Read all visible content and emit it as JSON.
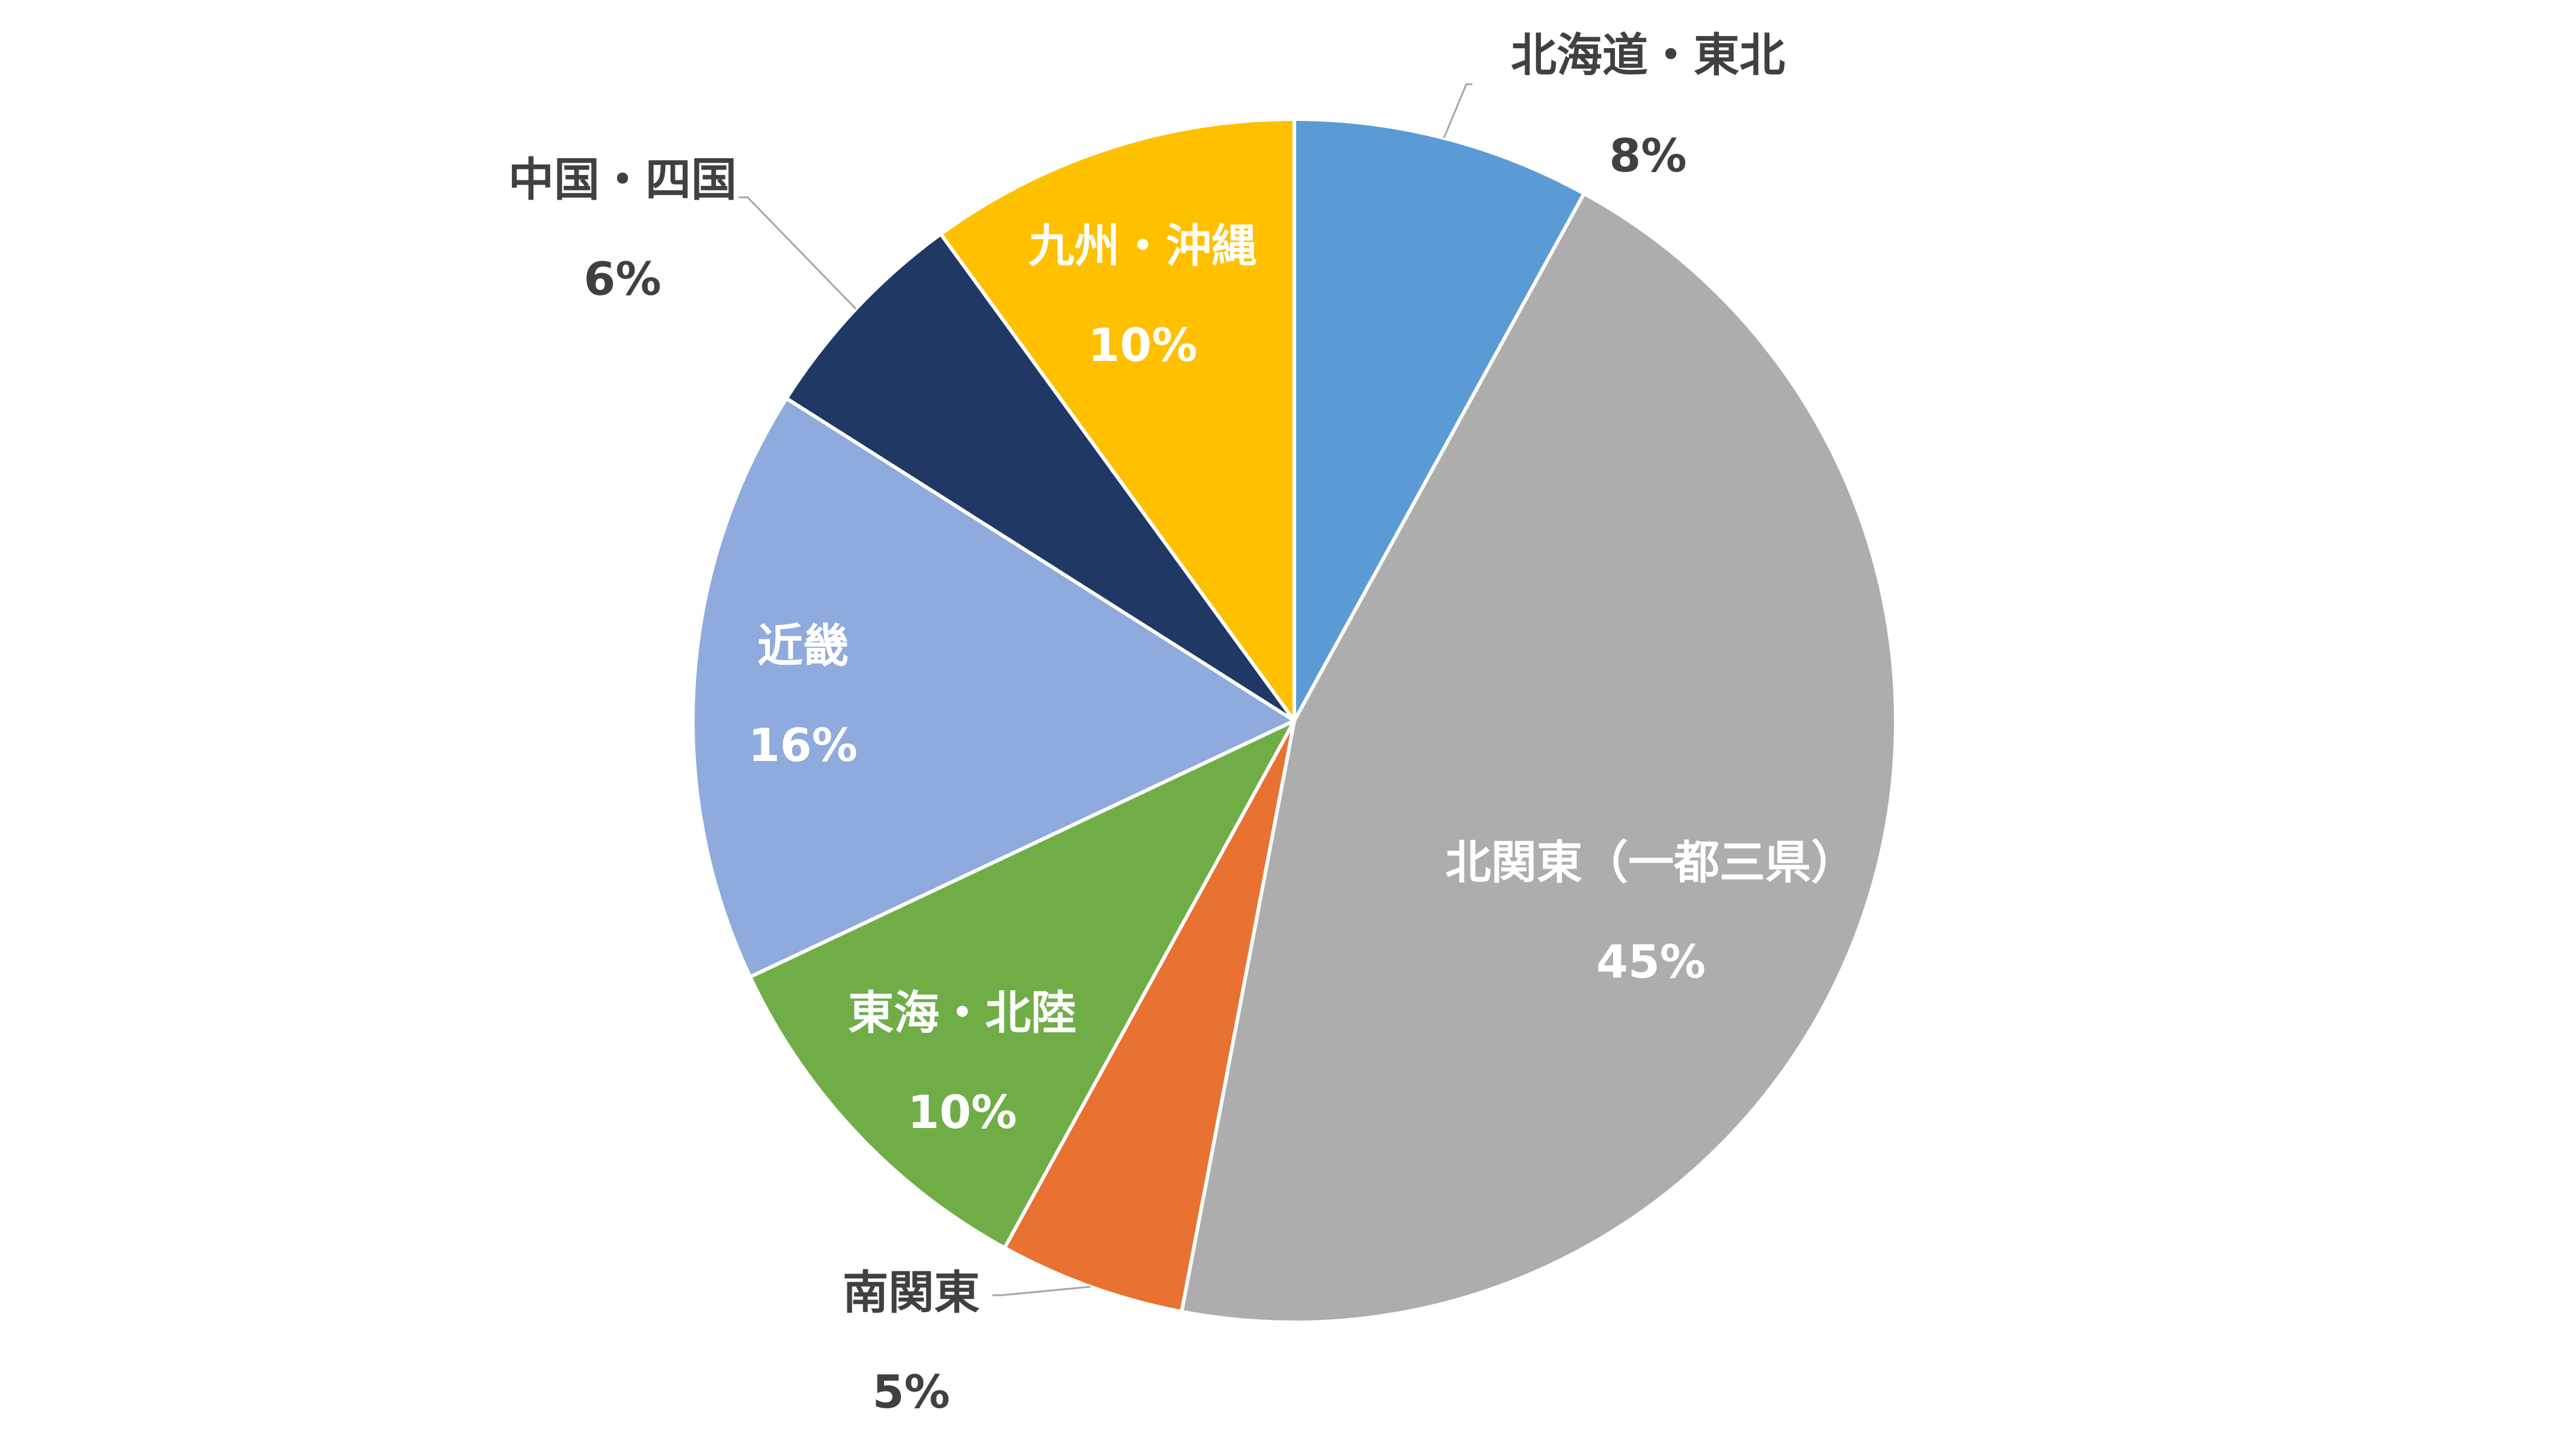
{
  "chart_data": {
    "type": "pie",
    "title": "",
    "start_angle_deg": 0,
    "direction": "clockwise",
    "slices": [
      {
        "label": "北海道・東北",
        "value": 8,
        "pct_label": "8%",
        "color": "#5B9BD5",
        "label_position": "outside"
      },
      {
        "label": "北関東（一都三県）",
        "value": 45,
        "pct_label": "45%",
        "color": "#ADADAD",
        "label_position": "inside"
      },
      {
        "label": "南関東",
        "value": 5,
        "pct_label": "5%",
        "color": "#E97132",
        "label_position": "outside"
      },
      {
        "label": "東海・北陸",
        "value": 10,
        "pct_label": "10%",
        "color": "#70AD47",
        "label_position": "inside"
      },
      {
        "label": "近畿",
        "value": 16,
        "pct_label": "16%",
        "color": "#8FAADC",
        "label_position": "inside"
      },
      {
        "label": "中国・四国",
        "value": 6,
        "pct_label": "6%",
        "color": "#203864",
        "label_position": "outside"
      },
      {
        "label": "九州・沖縄",
        "value": 10,
        "pct_label": "10%",
        "color": "#FFC000",
        "label_position": "inside"
      }
    ],
    "legend": "none",
    "label_text_color_outside": "#404040",
    "label_text_color_inside": "#FFFFFF",
    "leader_line_color": "#A6A6A6"
  }
}
